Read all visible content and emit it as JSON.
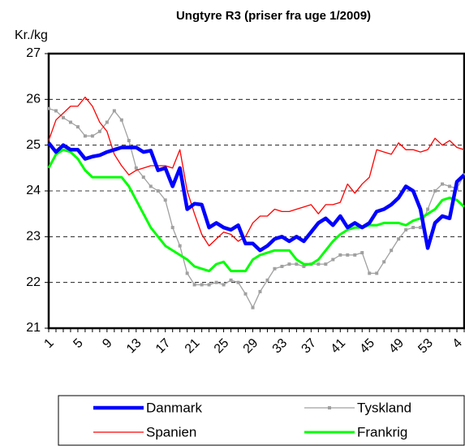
{
  "chart_data": {
    "type": "line",
    "title": "Ungtyre R3 (priser fra uge 1/2009)",
    "y_label": "Kr./kg",
    "categories": [
      "1",
      null,
      null,
      null,
      "5",
      null,
      null,
      null,
      "9",
      null,
      null,
      null,
      "13",
      null,
      null,
      null,
      "17",
      null,
      null,
      null,
      "21",
      null,
      null,
      null,
      "25",
      null,
      null,
      null,
      "29",
      null,
      null,
      null,
      "33",
      null,
      null,
      null,
      "37",
      null,
      null,
      null,
      "41",
      null,
      null,
      null,
      "45",
      null,
      null,
      null,
      "49",
      null,
      null,
      null,
      "53",
      null,
      null,
      null,
      "4",
      null
    ],
    "ylim": [
      21,
      27
    ],
    "yticks": [
      21,
      22,
      23,
      24,
      25,
      26,
      27
    ],
    "grid": true,
    "series": [
      {
        "name": "Danmark",
        "color": "#0000ff",
        "values": [
          25.05,
          24.85,
          25.0,
          24.9,
          24.9,
          24.7,
          24.75,
          24.78,
          24.85,
          24.9,
          24.95,
          24.95,
          24.95,
          24.85,
          24.88,
          24.45,
          24.5,
          24.1,
          24.5,
          23.6,
          23.72,
          23.7,
          23.2,
          23.3,
          23.2,
          23.15,
          23.25,
          22.85,
          22.85,
          22.7,
          22.8,
          22.95,
          23.0,
          22.9,
          23.0,
          22.9,
          23.1,
          23.3,
          23.4,
          23.25,
          23.45,
          23.2,
          23.3,
          23.2,
          23.3,
          23.55,
          23.6,
          23.7,
          23.85,
          24.1,
          24.0,
          23.6,
          22.75,
          23.3,
          23.45,
          23.4,
          24.2,
          24.35
        ]
      },
      {
        "name": "Tyskland",
        "color": "#a0a0a0",
        "marker": "square",
        "values": [
          25.8,
          25.75,
          25.6,
          25.5,
          25.4,
          25.2,
          25.2,
          25.3,
          25.5,
          25.75,
          25.55,
          25.1,
          24.5,
          24.3,
          24.1,
          24.0,
          23.8,
          23.2,
          22.8,
          22.2,
          21.95,
          21.95,
          21.95,
          22.0,
          21.95,
          22.05,
          22.0,
          21.75,
          21.45,
          21.8,
          22.05,
          22.3,
          22.35,
          22.4,
          22.4,
          22.35,
          22.4,
          22.4,
          22.4,
          22.5,
          22.6,
          22.6,
          22.6,
          22.65,
          22.2,
          22.2,
          22.45,
          22.7,
          22.95,
          23.15,
          23.2,
          23.2,
          23.6,
          24.0,
          24.15,
          24.1,
          24.05,
          24.35
        ]
      },
      {
        "name": "Spanien",
        "color": "#ff0000",
        "values": [
          25.1,
          25.55,
          25.7,
          25.85,
          25.85,
          26.05,
          25.85,
          25.5,
          25.3,
          24.8,
          24.55,
          24.35,
          24.45,
          24.5,
          24.55,
          24.55,
          24.55,
          24.5,
          24.9,
          24.0,
          23.5,
          23.05,
          22.8,
          22.95,
          23.1,
          23.05,
          22.9,
          23.0,
          23.3,
          23.45,
          23.45,
          23.6,
          23.55,
          23.55,
          23.6,
          23.65,
          23.7,
          23.5,
          23.7,
          23.7,
          23.75,
          24.15,
          23.95,
          24.15,
          24.3,
          24.9,
          24.85,
          24.8,
          25.05,
          24.9,
          24.9,
          24.85,
          24.9,
          25.15,
          25.0,
          25.1,
          24.95,
          24.9
        ]
      },
      {
        "name": "Frankrig",
        "color": "#00ff00",
        "values": [
          24.5,
          24.8,
          24.9,
          24.85,
          24.7,
          24.45,
          24.3,
          24.3,
          24.3,
          24.3,
          24.3,
          24.1,
          23.8,
          23.5,
          23.2,
          23.0,
          22.8,
          22.7,
          22.6,
          22.5,
          22.35,
          22.3,
          22.25,
          22.4,
          22.45,
          22.25,
          22.25,
          22.25,
          22.5,
          22.6,
          22.65,
          22.7,
          22.7,
          22.7,
          22.5,
          22.4,
          22.4,
          22.5,
          22.7,
          22.9,
          23.05,
          23.15,
          23.2,
          23.2,
          23.25,
          23.25,
          23.3,
          23.3,
          23.3,
          23.25,
          23.35,
          23.4,
          23.5,
          23.6,
          23.8,
          23.85,
          23.8,
          23.65
        ]
      }
    ]
  }
}
